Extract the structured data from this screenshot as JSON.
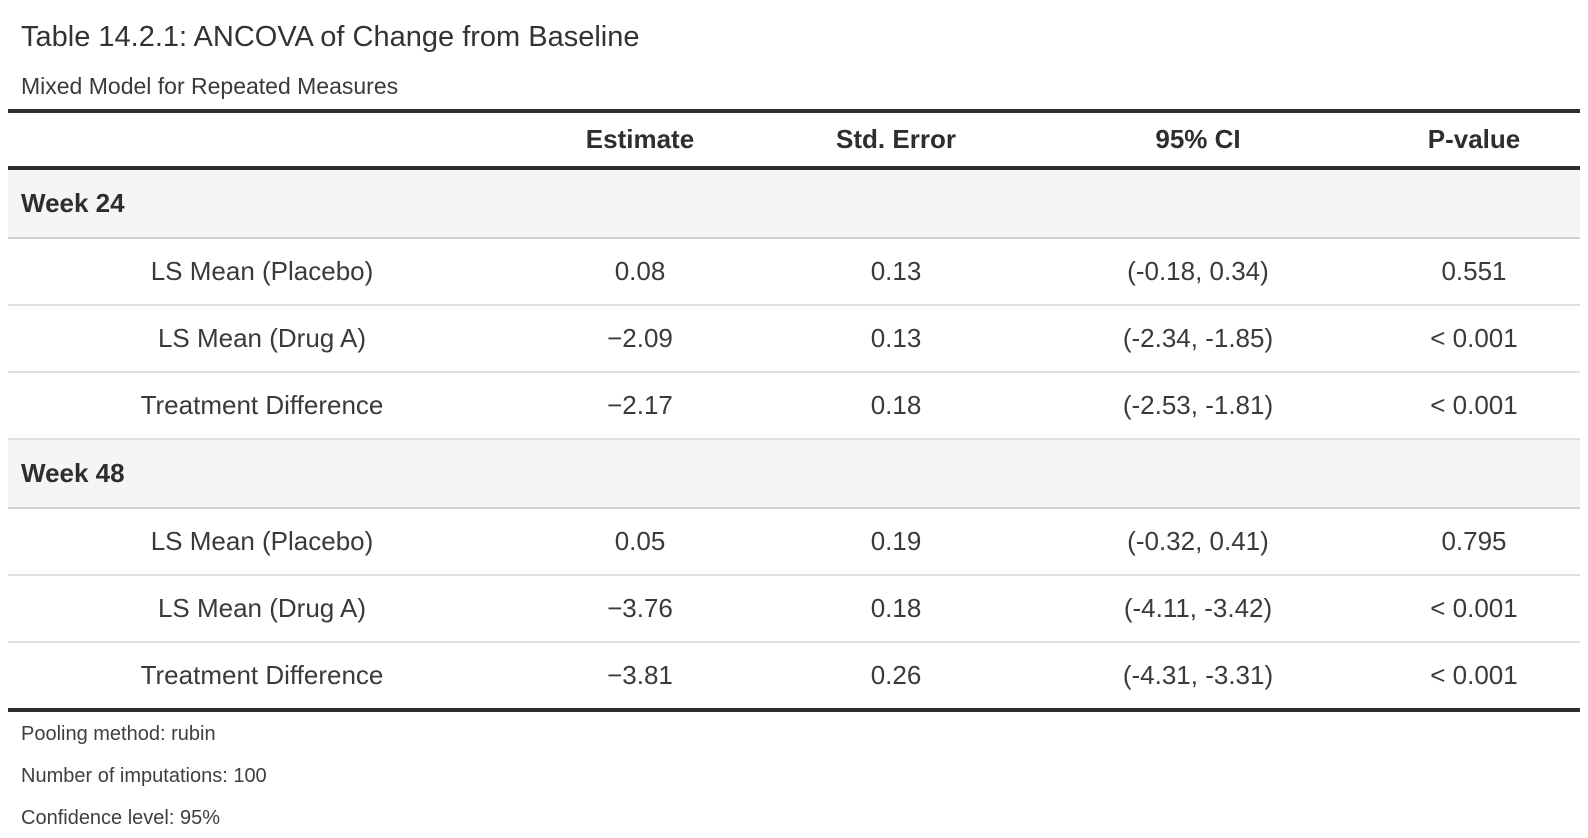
{
  "title": "Table 14.2.1: ANCOVA of Change from Baseline",
  "subtitle": "Mixed Model for Repeated Measures",
  "table": {
    "columns": [
      "",
      "Estimate",
      "Std. Error",
      "95% CI",
      "P-value"
    ],
    "groups": [
      {
        "label": "Week 24",
        "rows": [
          {
            "label": "LS Mean (Placebo)",
            "estimate": "0.08",
            "std_error": "0.13",
            "ci": "(-0.18, 0.34)",
            "p_value": "0.551"
          },
          {
            "label": "LS Mean (Drug A)",
            "estimate": "−2.09",
            "std_error": "0.13",
            "ci": "(-2.34, -1.85)",
            "p_value": "< 0.001"
          },
          {
            "label": "Treatment Difference",
            "estimate": "−2.17",
            "std_error": "0.18",
            "ci": "(-2.53, -1.81)",
            "p_value": "< 0.001"
          }
        ]
      },
      {
        "label": "Week 48",
        "rows": [
          {
            "label": "LS Mean (Placebo)",
            "estimate": "0.05",
            "std_error": "0.19",
            "ci": "(-0.32, 0.41)",
            "p_value": "0.795"
          },
          {
            "label": "LS Mean (Drug A)",
            "estimate": "−3.76",
            "std_error": "0.18",
            "ci": "(-4.11, -3.42)",
            "p_value": "< 0.001"
          },
          {
            "label": "Treatment Difference",
            "estimate": "−3.81",
            "std_error": "0.26",
            "ci": "(-4.31, -3.31)",
            "p_value": "< 0.001"
          }
        ]
      }
    ]
  },
  "footnotes": [
    "Pooling method: rubin",
    "Number of imputations: 100",
    "Confidence level: 95%"
  ],
  "colors": {
    "heavy_border": "#2e2e2e",
    "light_border": "#e0e0e0",
    "group_border": "#d2d2d2",
    "group_background": "#f5f5f5",
    "text": "#3a3a3a"
  }
}
